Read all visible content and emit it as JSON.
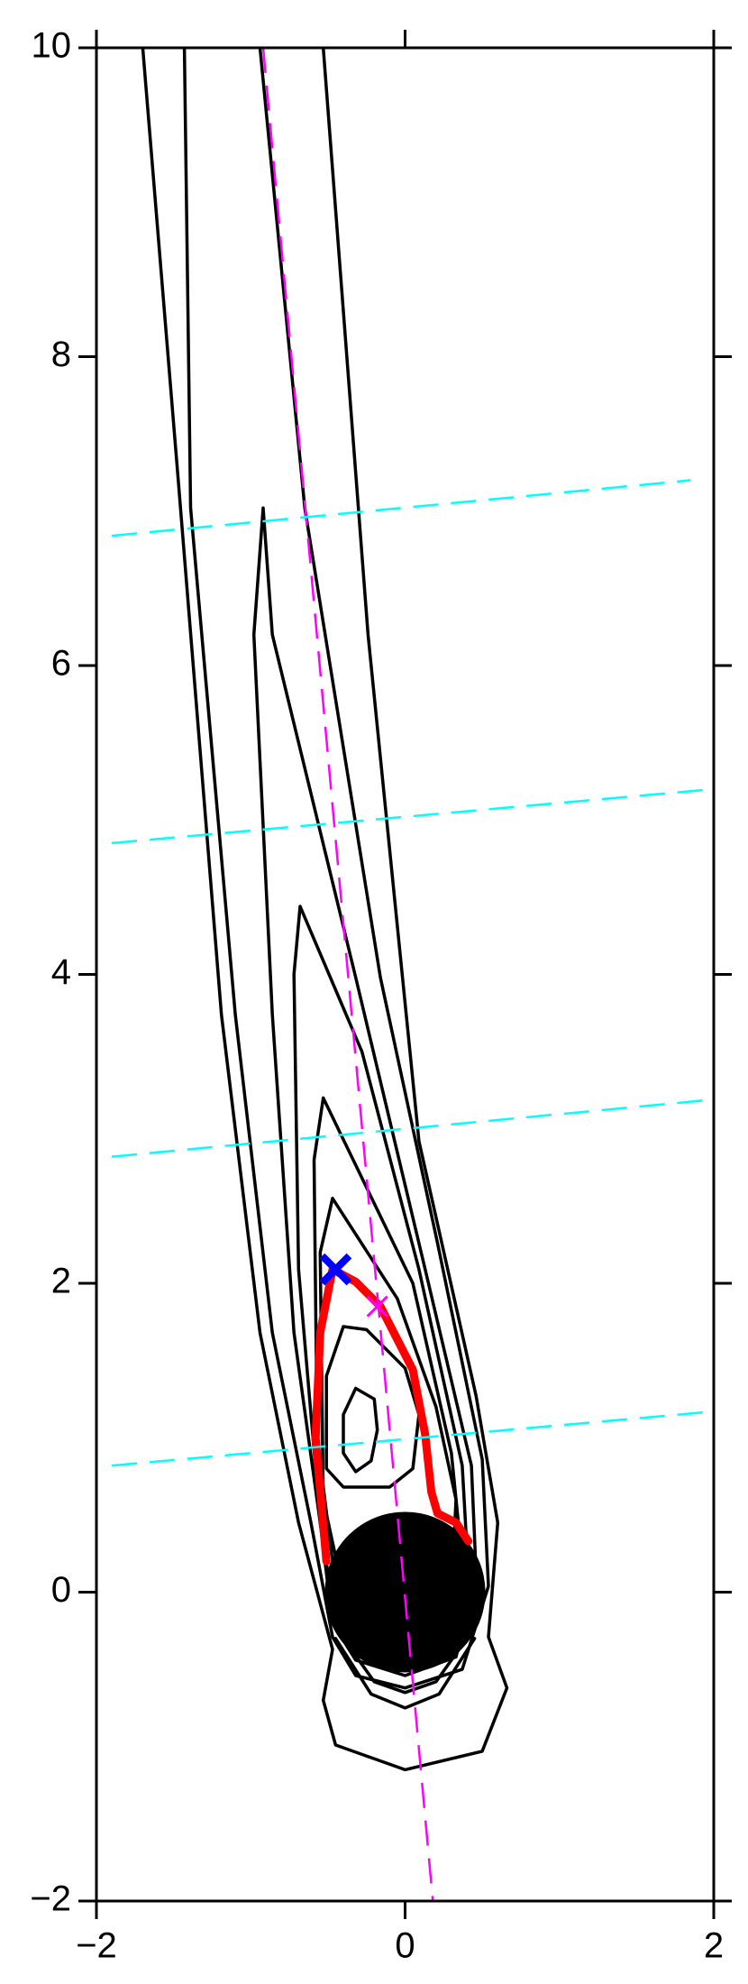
{
  "chart_data": {
    "type": "contour",
    "xlim": [
      -2,
      2
    ],
    "ylim": [
      -2,
      10
    ],
    "xticks": [
      {
        "value": -2,
        "label": "−2"
      },
      0,
      2
    ],
    "yticks": [
      {
        "value": -2,
        "label": "−2"
      },
      0,
      2,
      4,
      6,
      8,
      10
    ],
    "series": [
      {
        "color": "#000000",
        "linestyle": "solid",
        "linewidth": 3.5,
        "x": [
          -1.7,
          -1.47,
          -1.19,
          -0.94,
          -0.69,
          -0.47,
          -0.53,
          -0.45,
          0.0,
          0.5,
          0.66,
          0.54,
          0.6,
          0.46,
          0.09,
          -0.24,
          -0.53
        ],
        "y": [
          10,
          7.2,
          3.74,
          1.68,
          0.45,
          -0.37,
          -0.7,
          -0.99,
          -1.15,
          -1.03,
          -0.62,
          -0.29,
          0.45,
          1.27,
          2.92,
          6.2,
          10
        ]
      },
      {
        "color": "#000000",
        "linestyle": "solid",
        "linewidth": 3.5,
        "x": [
          -1.43,
          -1.39,
          -1.1,
          -0.86,
          -0.61,
          -0.47,
          -0.32,
          0.0,
          0.37,
          0.54,
          0.5,
          0.21,
          -0.16,
          -0.65,
          -0.94
        ],
        "y": [
          10,
          7.02,
          3.74,
          1.68,
          0.45,
          -0.29,
          -0.54,
          -0.62,
          -0.5,
          0.04,
          0.86,
          2.26,
          3.98,
          7.02,
          10
        ]
      },
      {
        "color": "#000000",
        "linestyle": "solid",
        "linewidth": 3.5,
        "x": [
          -0.92,
          -0.98,
          -0.86,
          -0.72,
          -0.55,
          -0.47,
          -0.32,
          0.0,
          0.33,
          0.46,
          0.43,
          0.13,
          -0.32,
          -0.86,
          -0.92
        ],
        "y": [
          7.02,
          6.2,
          3.74,
          1.68,
          0.45,
          -0.2,
          -0.44,
          -0.54,
          -0.42,
          0.12,
          0.82,
          2.09,
          3.98,
          6.2,
          7.02
        ]
      },
      {
        "color": "#000000",
        "linestyle": "solid",
        "linewidth": 3.5,
        "x": [
          -0.68,
          -0.72,
          -0.69,
          -0.55,
          -0.45,
          -0.32,
          0.0,
          0.28,
          0.41,
          0.37,
          0.09,
          -0.28,
          -0.68
        ],
        "y": [
          4.44,
          4.0,
          2.09,
          0.45,
          -0.2,
          -0.37,
          -0.45,
          -0.34,
          0.12,
          0.82,
          2.09,
          3.5,
          4.44
        ]
      },
      {
        "color": "#000000",
        "linestyle": "solid",
        "linewidth": 3.5,
        "x": [
          -0.53,
          -0.59,
          -0.57,
          -0.47,
          -0.3,
          0.0,
          0.25,
          0.37,
          0.3,
          0.05,
          -0.53
        ],
        "y": [
          3.2,
          2.8,
          1.0,
          0.2,
          -0.3,
          -0.38,
          -0.25,
          0.2,
          0.9,
          2.0,
          3.2
        ]
      },
      {
        "color": "#000000",
        "linestyle": "solid",
        "linewidth": 3.5,
        "x": [
          -0.47,
          -0.55,
          -0.53,
          -0.4,
          0.0,
          0.3,
          0.33,
          0.2,
          -0.05,
          -0.47
        ],
        "y": [
          2.55,
          2.2,
          0.6,
          0.0,
          -0.2,
          0.0,
          0.6,
          1.2,
          1.9,
          2.55
        ]
      },
      {
        "color": "#000000",
        "linestyle": "solid",
        "linewidth": 3.5,
        "x": [
          -0.4,
          -0.51,
          -0.51,
          -0.4,
          -0.1,
          0.05,
          0.09,
          0.0,
          -0.25,
          -0.4
        ],
        "y": [
          1.72,
          1.4,
          0.8,
          0.68,
          0.68,
          0.8,
          1.15,
          1.45,
          1.7,
          1.72
        ]
      },
      {
        "color": "#000000",
        "linestyle": "solid",
        "linewidth": 3.5,
        "x": [
          -0.32,
          -0.4,
          -0.4,
          -0.32,
          -0.22,
          -0.18,
          -0.2,
          -0.32
        ],
        "y": [
          1.32,
          1.15,
          0.9,
          0.78,
          0.85,
          1.05,
          1.25,
          1.32
        ]
      },
      {
        "color": "#000000",
        "linestyle": "solid",
        "linewidth": 3.5,
        "x": [
          -0.4,
          -0.2,
          0.0,
          0.2,
          0.4
        ],
        "y": [
          -0.3,
          -0.58,
          -0.65,
          -0.58,
          -0.3
        ]
      },
      {
        "color": "#000000",
        "linestyle": "solid",
        "linewidth": 3.5,
        "x": [
          -0.45,
          -0.22,
          0.0,
          0.22,
          0.45
        ],
        "y": [
          -0.3,
          -0.66,
          -0.75,
          -0.66,
          -0.3
        ]
      },
      {
        "color": "#ff0000",
        "linestyle": "solid",
        "linewidth": 9,
        "x": [
          -0.51,
          -0.58,
          -0.55,
          -0.47,
          -0.32,
          -0.16,
          0.05,
          0.13,
          0.17,
          0.21,
          0.33,
          0.41
        ],
        "y": [
          0.2,
          1.0,
          1.68,
          2.09,
          2.01,
          1.85,
          1.44,
          1.02,
          0.65,
          0.51,
          0.45,
          0.33
        ]
      },
      {
        "color": "#ff00ff",
        "linestyle": "dashed",
        "linewidth": 2.5,
        "x": [
          -0.92,
          0.18
        ],
        "y": [
          10,
          -2
        ]
      },
      {
        "color": "#00ffff",
        "linestyle": "dashed",
        "linewidth": 2.5,
        "x": [
          -1.9,
          2.0
        ],
        "y": [
          0.82,
          1.17
        ]
      },
      {
        "color": "#00ffff",
        "linestyle": "dashed",
        "linewidth": 2.5,
        "x": [
          -1.9,
          2.0
        ],
        "y": [
          2.82,
          3.19
        ]
      },
      {
        "color": "#00ffff",
        "linestyle": "dashed",
        "linewidth": 2.5,
        "x": [
          -1.9,
          2.0
        ],
        "y": [
          4.85,
          5.2
        ]
      },
      {
        "color": "#00ffff",
        "linestyle": "dashed",
        "linewidth": 2.5,
        "x": [
          -1.9,
          1.85
        ],
        "y": [
          6.84,
          7.2
        ]
      }
    ],
    "disk": {
      "x": 0,
      "y": 0,
      "r": 0.52,
      "color": "#000000"
    },
    "markers": [
      {
        "x": -0.45,
        "y": 2.09,
        "color": "#0000ff",
        "marker": "X"
      },
      {
        "x": -0.18,
        "y": 1.85,
        "color": "#ff00ff",
        "marker": "x"
      }
    ]
  }
}
